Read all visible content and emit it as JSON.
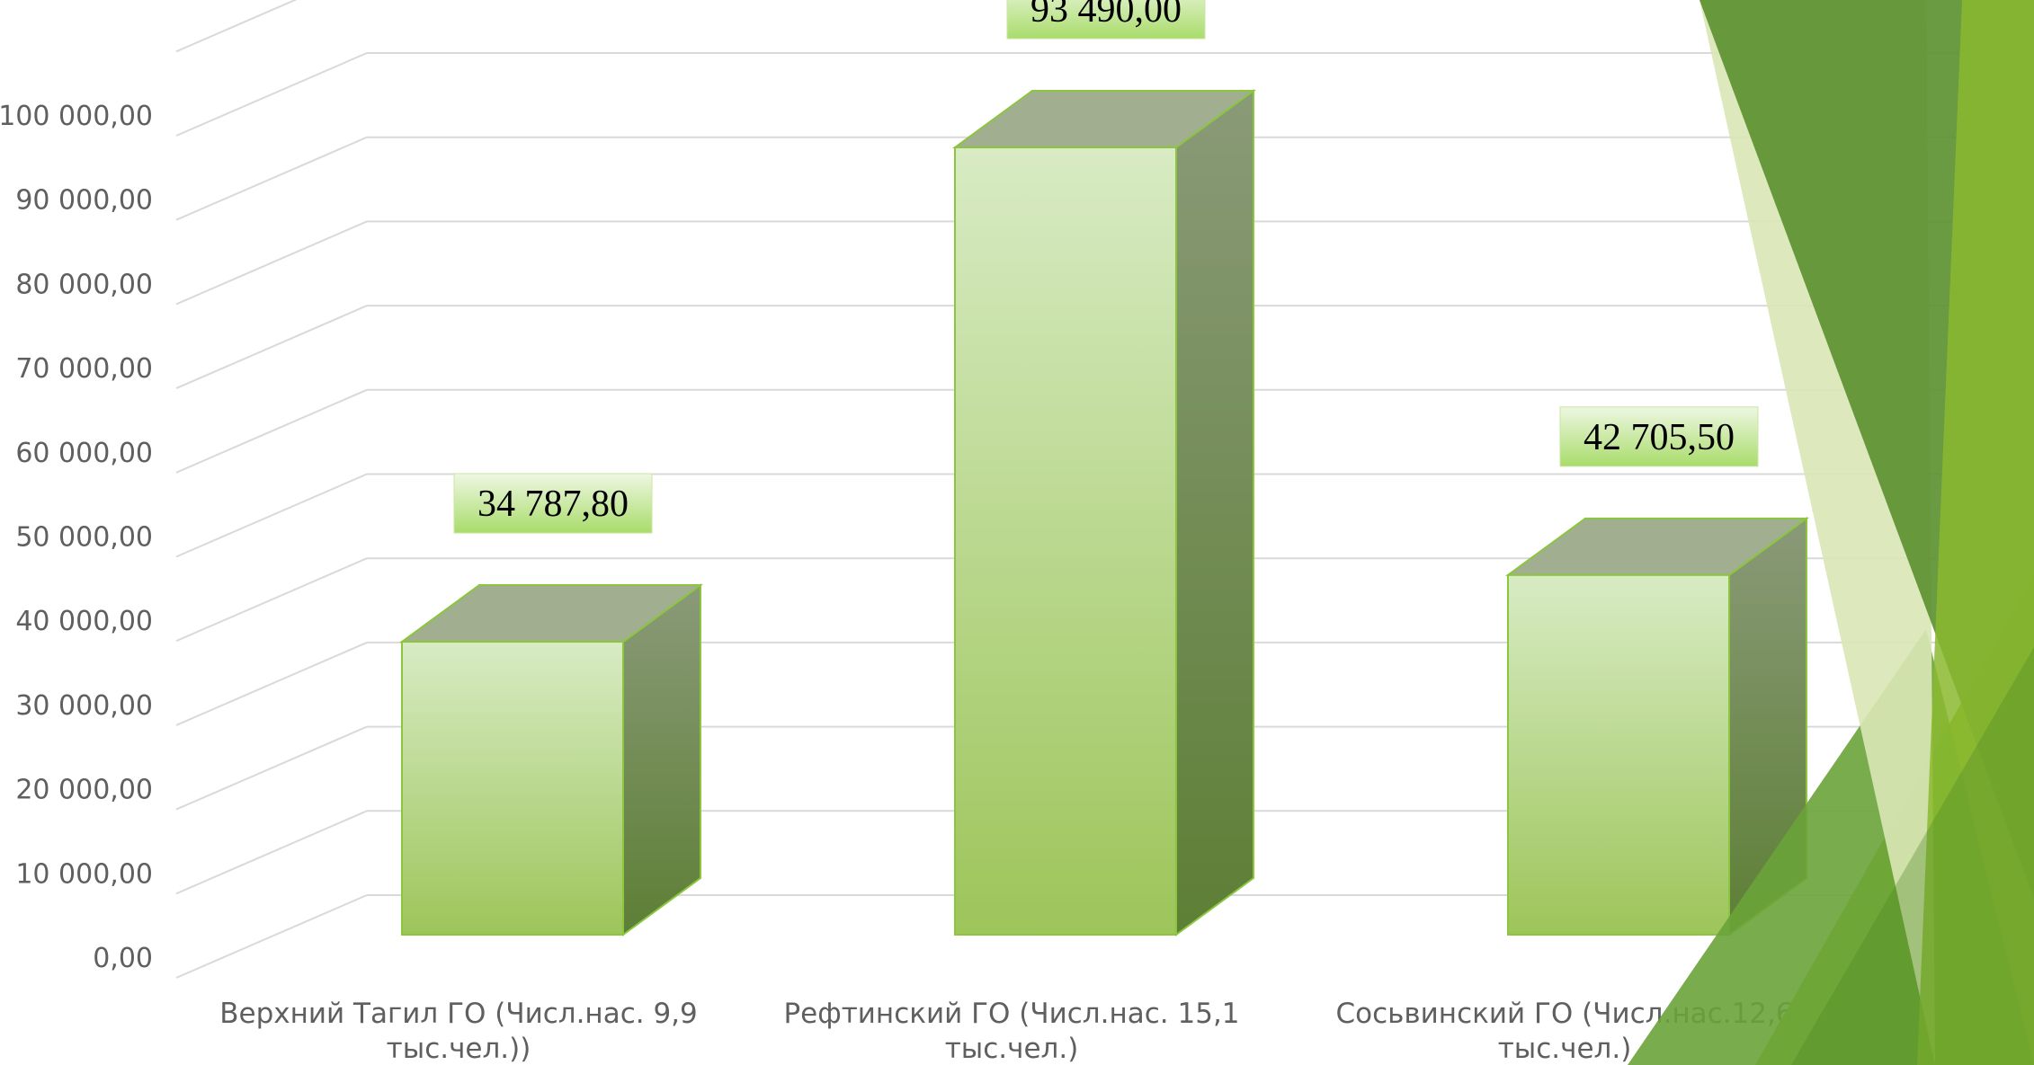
{
  "chart_data": {
    "type": "bar",
    "title": "",
    "xlabel": "",
    "ylabel": "",
    "ylim": [
      0,
      100000
    ],
    "y_ticks": [
      "0,00",
      "10 000,00",
      "20 000,00",
      "30 000,00",
      "40 000,00",
      "50 000,00",
      "60 000,00",
      "70 000,00",
      "80 000,00",
      "90 000,00",
      "100 000,00"
    ],
    "categories": [
      [
        "Верхний Тагил ГО (Числ.нас. 9,9",
        "тыс.чел.))"
      ],
      [
        "Рефтинский ГО (Числ.нас. 15,1",
        "тыс.чел.)"
      ],
      [
        "Сосьвинский ГО (Числ.нас.12,6",
        "тыс.чел.)"
      ]
    ],
    "values": [
      34787.8,
      93490.0,
      42705.5
    ],
    "data_labels": [
      "34 787,80",
      "93 490,00",
      "42 705,50"
    ],
    "grid": true,
    "legend": "none",
    "bar_style": "3d-column",
    "colors": {
      "bar_front_top": "#d8ebc4",
      "bar_front_bottom": "#9dc55a",
      "bar_side_top": "#8a9a78",
      "bar_side_bottom": "#5d7f35",
      "bar_top": "#a2ae90",
      "bar_stroke": "#8cc63f",
      "label_bg_top": "#eef7e2",
      "label_bg_bottom": "#a9dc6b",
      "gridline": "#d9d9d9"
    }
  },
  "decoration": {
    "theme": "green-facets",
    "colors": [
      "#5a8f2e",
      "#6aa339",
      "#8ab92f",
      "#d9e7b6",
      "#4c8a25"
    ]
  }
}
